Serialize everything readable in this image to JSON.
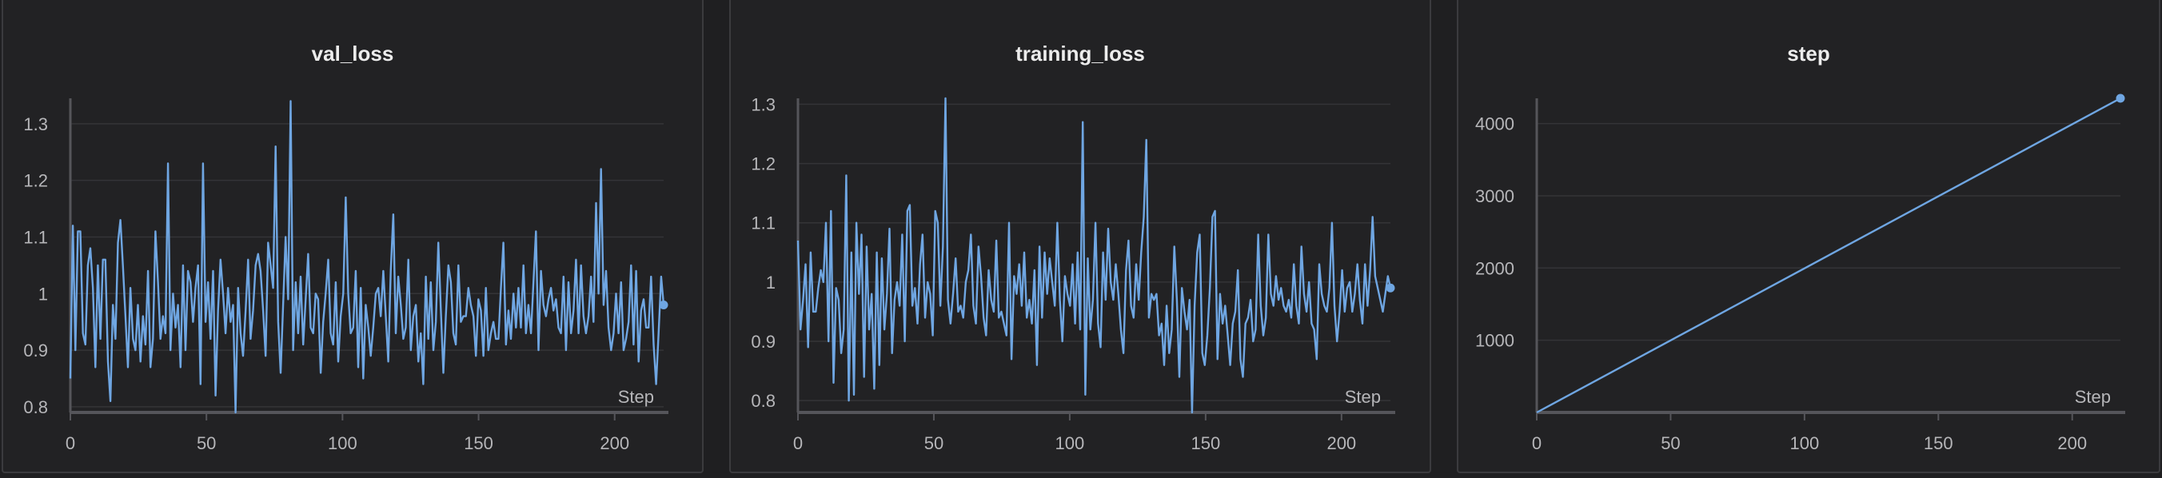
{
  "chart_data": [
    {
      "type": "line",
      "title": "val_loss",
      "xlabel": "Step",
      "ylabel": "",
      "xlim": [
        0,
        218
      ],
      "ylim": [
        0.79,
        1.345
      ],
      "xticks": [
        0,
        50,
        100,
        150,
        200
      ],
      "yticks": [
        0.8,
        0.9,
        1,
        1.1,
        1.2,
        1.3
      ],
      "grid": true,
      "color": "#6fa6e2",
      "series": [
        {
          "values": [
            0.85,
            1.12,
            0.9,
            1.11,
            1.11,
            0.93,
            0.91,
            1.05,
            1.08,
            1.01,
            0.87,
            1.05,
            0.92,
            1.06,
            1.06,
            0.88,
            0.81,
            0.98,
            0.92,
            1.09,
            1.13,
            1.05,
            0.96,
            0.87,
            1.01,
            0.92,
            0.9,
            0.98,
            0.88,
            0.96,
            0.91,
            1.04,
            0.87,
            0.92,
            1.11,
            1.02,
            0.92,
            0.96,
            0.93,
            1.23,
            0.9,
            1.0,
            0.94,
            0.98,
            0.87,
            1.05,
            0.9,
            1.04,
            1.02,
            0.95,
            1.01,
            1.05,
            0.84,
            1.23,
            0.95,
            1.02,
            0.92,
            1.04,
            0.82,
            0.97,
            1.06,
            1.0,
            0.93,
            1.01,
            0.95,
            0.98,
            0.79,
            1.01,
            0.93,
            0.89,
            0.97,
            1.06,
            0.92,
            0.97,
            1.05,
            1.07,
            1.04,
            0.97,
            0.89,
            1.09,
            1.05,
            1.01,
            1.26,
            0.95,
            0.86,
            0.98,
            1.1,
            0.99,
            1.34,
            0.9,
            1.02,
            0.93,
            1.03,
            0.91,
            0.99,
            1.07,
            0.94,
            0.93,
            1.0,
            0.99,
            0.86,
            0.95,
            1.0,
            1.06,
            0.93,
            0.91,
            1.02,
            0.88,
            0.96,
            1.0,
            1.17,
            1.0,
            0.93,
            0.94,
            1.04,
            0.87,
            1.01,
            0.85,
            0.98,
            0.94,
            0.89,
            0.94,
            1.0,
            1.01,
            0.96,
            1.04,
            0.96,
            0.88,
            1.04,
            1.14,
            0.93,
            1.03,
            0.98,
            0.92,
            0.94,
            1.06,
            0.9,
            0.96,
            0.98,
            0.88,
            0.93,
            0.84,
            1.03,
            0.92,
            1.02,
            0.9,
            0.95,
            1.09,
            0.97,
            0.86,
            0.96,
            1.05,
            1.02,
            0.93,
            0.91,
            1.05,
            0.95,
            0.96,
            0.96,
            1.01,
            0.98,
            0.96,
            0.89,
            0.99,
            0.97,
            0.89,
            1.01,
            0.9,
            0.93,
            0.95,
            0.92,
            0.92,
            1.01,
            1.09,
            0.91,
            0.97,
            0.92,
            1.0,
            0.94,
            1.01,
            0.94,
            1.05,
            0.93,
            0.98,
            0.93,
            1.02,
            1.11,
            0.9,
            1.04,
            0.98,
            0.96,
            0.99,
            1.01,
            0.97,
            0.99,
            0.94,
            0.93,
            1.03,
            0.9,
            1.02,
            0.93,
            0.97,
            1.06,
            0.93,
            1.05,
            0.96,
            0.93,
            0.96,
            1.03,
            0.95,
            1.16,
            1.0,
            1.22,
            0.98,
            1.04,
            0.94,
            0.9,
            0.93,
            1.0,
            0.93,
            1.02,
            0.9,
            0.92,
            0.95,
            1.05,
            0.91,
            1.04,
            0.88,
            0.97,
            0.99,
            0.94,
            0.94,
            1.03,
            0.91,
            0.84,
            0.93,
            1.03,
            0.98
          ]
        }
      ]
    },
    {
      "type": "line",
      "title": "training_loss",
      "xlabel": "Step",
      "ylabel": "",
      "xlim": [
        0,
        218
      ],
      "ylim": [
        0.78,
        1.31
      ],
      "xticks": [
        0,
        50,
        100,
        150,
        200
      ],
      "yticks": [
        0.8,
        0.9,
        1,
        1.1,
        1.2,
        1.3
      ],
      "grid": true,
      "color": "#6fa6e2",
      "series": [
        {
          "values": [
            1.07,
            0.92,
            0.97,
            1.03,
            0.89,
            1.05,
            0.95,
            0.95,
            0.99,
            1.02,
            1.0,
            1.1,
            0.9,
            1.12,
            0.83,
            0.99,
            0.97,
            0.88,
            0.92,
            1.18,
            0.8,
            1.05,
            0.81,
            1.1,
            0.98,
            1.08,
            0.84,
            1.06,
            0.92,
            0.98,
            0.82,
            1.05,
            0.86,
            1.04,
            0.92,
            0.98,
            1.09,
            0.88,
            0.97,
            1.0,
            0.96,
            1.08,
            0.9,
            1.12,
            1.13,
            0.96,
            0.99,
            0.93,
            1.03,
            1.08,
            0.94,
            1.0,
            0.98,
            0.91,
            1.12,
            1.1,
            0.96,
            1.06,
            1.31,
            0.97,
            0.93,
            0.98,
            1.04,
            0.95,
            0.96,
            0.94,
            1.0,
            1.02,
            1.08,
            0.96,
            0.93,
            1.06,
            1.01,
            0.94,
            0.91,
            1.02,
            0.97,
            0.95,
            1.07,
            0.94,
            0.95,
            0.93,
            0.91,
            1.1,
            0.87,
            1.01,
            0.98,
            1.03,
            0.96,
            1.05,
            0.94,
            0.97,
            0.93,
            1.02,
            0.86,
            1.06,
            0.94,
            1.05,
            0.98,
            1.04,
            1.0,
            0.96,
            1.1,
            0.97,
            0.9,
            1.01,
            0.98,
            0.96,
            1.03,
            0.93,
            1.05,
            0.92,
            1.27,
            0.81,
            1.04,
            0.92,
            0.97,
            1.1,
            0.93,
            0.89,
            1.05,
            0.97,
            1.09,
            1.0,
            0.97,
            1.03,
            0.98,
            0.92,
            0.88,
            1.02,
            1.07,
            0.96,
            0.94,
            1.03,
            0.97,
            1.05,
            1.11,
            1.24,
            0.94,
            0.98,
            0.97,
            0.98,
            0.91,
            0.93,
            0.86,
            0.96,
            0.88,
            0.92,
            1.06,
            0.97,
            0.84,
            0.99,
            0.95,
            0.92,
            0.97,
            0.78,
            0.96,
            1.05,
            1.08,
            0.88,
            0.86,
            0.91,
            0.99,
            1.11,
            1.12,
            0.87,
            0.98,
            0.93,
            0.96,
            0.91,
            0.86,
            0.93,
            0.95,
            1.02,
            0.87,
            0.84,
            0.93,
            0.94,
            0.97,
            0.9,
            0.92,
            1.08,
            0.96,
            0.91,
            0.94,
            1.08,
            0.98,
            0.96,
            1.01,
            0.97,
            0.99,
            0.96,
            0.95,
            0.97,
            0.94,
            1.03,
            0.96,
            0.93,
            1.06,
            0.98,
            0.95,
            1.0,
            0.93,
            0.92,
            0.87,
            1.03,
            0.98,
            0.96,
            0.95,
            0.99,
            1.1,
            0.96,
            0.9,
            0.95,
            1.02,
            0.95,
            0.99,
            1.0,
            0.95,
            0.98,
            1.03,
            0.97,
            0.93,
            1.03,
            0.96,
            1.02,
            1.11,
            1.01,
            0.99,
            0.97,
            0.95,
            0.98,
            1.01,
            0.99
          ]
        }
      ]
    },
    {
      "type": "line",
      "title": "step",
      "xlabel": "Step",
      "ylabel": "",
      "xlim": [
        0,
        218
      ],
      "ylim": [
        0,
        4350
      ],
      "xticks": [
        0,
        50,
        100,
        150,
        200
      ],
      "yticks": [
        1000,
        2000,
        3000,
        4000
      ],
      "grid": true,
      "color": "#6fa6e2",
      "series": [
        {
          "x": [
            0,
            218
          ],
          "values": [
            0,
            4350
          ]
        }
      ]
    }
  ]
}
